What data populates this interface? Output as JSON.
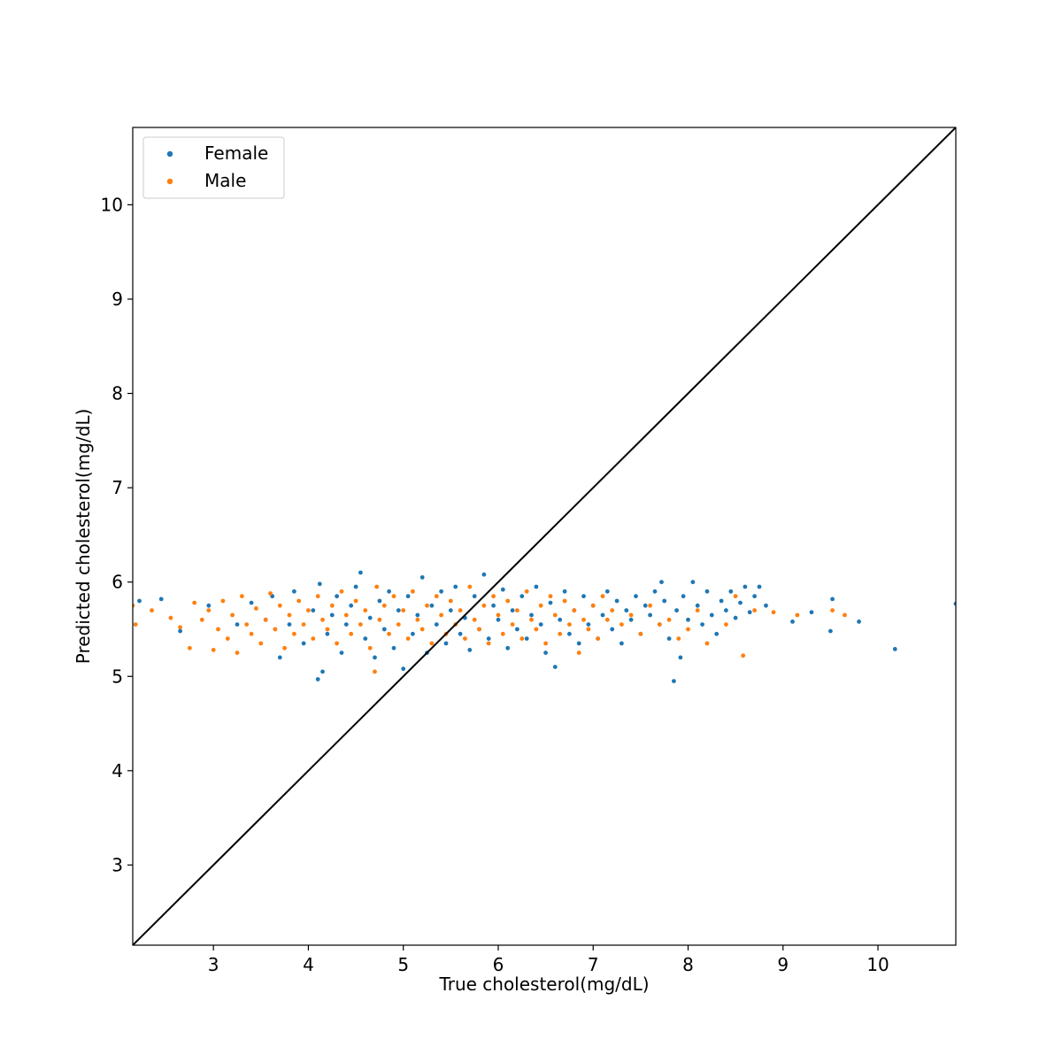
{
  "chart_data": {
    "type": "scatter",
    "xlabel": "True cholesterol(mg/dL)",
    "ylabel": "Predicted cholesterol(mg/dL)",
    "xlim": [
      2.15,
      10.82
    ],
    "ylim": [
      2.15,
      10.82
    ],
    "xticks": [
      3,
      4,
      5,
      6,
      7,
      8,
      9,
      10
    ],
    "yticks": [
      3,
      4,
      5,
      6,
      7,
      8,
      9,
      10
    ],
    "xtick_labels": [
      "3",
      "4",
      "5",
      "6",
      "7",
      "8",
      "9",
      "10"
    ],
    "ytick_labels": [
      "3",
      "4",
      "5",
      "6",
      "7",
      "8",
      "9",
      "10"
    ],
    "grid": false,
    "legend_position": "top-left",
    "reference_line": {
      "from": [
        2.15,
        2.15
      ],
      "to": [
        10.82,
        10.82
      ],
      "color": "#000000"
    },
    "series": [
      {
        "name": "Female",
        "color": "#1f77b4",
        "points": [
          [
            2.22,
            5.8
          ],
          [
            2.45,
            5.82
          ],
          [
            2.65,
            5.48
          ],
          [
            2.95,
            5.75
          ],
          [
            3.25,
            5.55
          ],
          [
            3.4,
            5.78
          ],
          [
            3.55,
            5.6
          ],
          [
            3.62,
            5.85
          ],
          [
            3.7,
            5.2
          ],
          [
            3.8,
            5.55
          ],
          [
            3.85,
            5.9
          ],
          [
            3.95,
            5.35
          ],
          [
            4.05,
            5.7
          ],
          [
            4.1,
            4.97
          ],
          [
            4.12,
            5.98
          ],
          [
            4.15,
            5.05
          ],
          [
            4.2,
            5.45
          ],
          [
            4.25,
            5.65
          ],
          [
            4.3,
            5.85
          ],
          [
            4.35,
            5.25
          ],
          [
            4.4,
            5.55
          ],
          [
            4.45,
            5.75
          ],
          [
            4.5,
            5.95
          ],
          [
            4.55,
            6.1
          ],
          [
            4.6,
            5.4
          ],
          [
            4.65,
            5.62
          ],
          [
            4.7,
            5.2
          ],
          [
            4.75,
            5.8
          ],
          [
            4.8,
            5.5
          ],
          [
            4.85,
            5.9
          ],
          [
            4.9,
            5.3
          ],
          [
            4.95,
            5.7
          ],
          [
            5.0,
            5.08
          ],
          [
            5.05,
            5.85
          ],
          [
            5.1,
            5.45
          ],
          [
            5.15,
            5.65
          ],
          [
            5.2,
            6.05
          ],
          [
            5.25,
            5.25
          ],
          [
            5.3,
            5.75
          ],
          [
            5.35,
            5.55
          ],
          [
            5.4,
            5.9
          ],
          [
            5.45,
            5.35
          ],
          [
            5.5,
            5.7
          ],
          [
            5.55,
            5.95
          ],
          [
            5.6,
            5.45
          ],
          [
            5.65,
            5.62
          ],
          [
            5.7,
            5.28
          ],
          [
            5.75,
            5.85
          ],
          [
            5.8,
            5.5
          ],
          [
            5.85,
            6.08
          ],
          [
            5.9,
            5.4
          ],
          [
            5.95,
            5.75
          ],
          [
            6.0,
            5.6
          ],
          [
            6.05,
            5.92
          ],
          [
            6.1,
            5.3
          ],
          [
            6.15,
            5.7
          ],
          [
            6.2,
            5.5
          ],
          [
            6.25,
            5.85
          ],
          [
            6.3,
            5.4
          ],
          [
            6.35,
            5.65
          ],
          [
            6.4,
            5.95
          ],
          [
            6.45,
            5.55
          ],
          [
            6.5,
            5.25
          ],
          [
            6.55,
            5.78
          ],
          [
            6.6,
            5.1
          ],
          [
            6.65,
            5.6
          ],
          [
            6.7,
            5.9
          ],
          [
            6.75,
            5.45
          ],
          [
            6.8,
            5.7
          ],
          [
            6.85,
            5.35
          ],
          [
            6.9,
            5.85
          ],
          [
            6.95,
            5.55
          ],
          [
            7.0,
            5.75
          ],
          [
            7.05,
            5.4
          ],
          [
            7.1,
            5.65
          ],
          [
            7.15,
            5.9
          ],
          [
            7.2,
            5.5
          ],
          [
            7.25,
            5.8
          ],
          [
            7.3,
            5.35
          ],
          [
            7.35,
            5.7
          ],
          [
            7.4,
            5.6
          ],
          [
            7.45,
            5.85
          ],
          [
            7.5,
            5.45
          ],
          [
            7.55,
            5.75
          ],
          [
            7.6,
            5.65
          ],
          [
            7.65,
            5.9
          ],
          [
            7.7,
            5.55
          ],
          [
            7.72,
            6.0
          ],
          [
            7.75,
            5.8
          ],
          [
            7.8,
            5.4
          ],
          [
            7.85,
            4.95
          ],
          [
            7.88,
            5.7
          ],
          [
            7.92,
            5.2
          ],
          [
            7.95,
            5.85
          ],
          [
            8.0,
            5.6
          ],
          [
            8.05,
            6.0
          ],
          [
            8.1,
            5.75
          ],
          [
            8.15,
            5.55
          ],
          [
            8.2,
            5.9
          ],
          [
            8.25,
            5.65
          ],
          [
            8.3,
            5.45
          ],
          [
            8.35,
            5.8
          ],
          [
            8.4,
            5.7
          ],
          [
            8.45,
            5.9
          ],
          [
            8.5,
            5.62
          ],
          [
            8.55,
            5.78
          ],
          [
            8.6,
            5.95
          ],
          [
            8.65,
            5.68
          ],
          [
            8.7,
            5.85
          ],
          [
            8.75,
            5.95
          ],
          [
            8.82,
            5.75
          ],
          [
            9.1,
            5.58
          ],
          [
            9.3,
            5.68
          ],
          [
            9.5,
            5.48
          ],
          [
            9.52,
            5.82
          ],
          [
            9.8,
            5.58
          ],
          [
            10.18,
            5.29
          ],
          [
            10.82,
            5.77
          ]
        ]
      },
      {
        "name": "Male",
        "color": "#ff7f0e",
        "points": [
          [
            2.15,
            5.75
          ],
          [
            2.18,
            5.55
          ],
          [
            2.35,
            5.7
          ],
          [
            2.55,
            5.62
          ],
          [
            2.65,
            5.52
          ],
          [
            2.75,
            5.3
          ],
          [
            2.8,
            5.78
          ],
          [
            2.88,
            5.6
          ],
          [
            2.95,
            5.7
          ],
          [
            3.0,
            5.28
          ],
          [
            3.05,
            5.5
          ],
          [
            3.1,
            5.8
          ],
          [
            3.15,
            5.4
          ],
          [
            3.2,
            5.65
          ],
          [
            3.25,
            5.25
          ],
          [
            3.3,
            5.85
          ],
          [
            3.35,
            5.55
          ],
          [
            3.4,
            5.45
          ],
          [
            3.45,
            5.72
          ],
          [
            3.5,
            5.35
          ],
          [
            3.55,
            5.6
          ],
          [
            3.6,
            5.88
          ],
          [
            3.65,
            5.5
          ],
          [
            3.7,
            5.75
          ],
          [
            3.75,
            5.3
          ],
          [
            3.8,
            5.65
          ],
          [
            3.85,
            5.45
          ],
          [
            3.9,
            5.8
          ],
          [
            3.95,
            5.55
          ],
          [
            4.0,
            5.7
          ],
          [
            4.05,
            5.4
          ],
          [
            4.1,
            5.85
          ],
          [
            4.15,
            5.6
          ],
          [
            4.2,
            5.5
          ],
          [
            4.25,
            5.75
          ],
          [
            4.3,
            5.35
          ],
          [
            4.35,
            5.9
          ],
          [
            4.4,
            5.65
          ],
          [
            4.45,
            5.45
          ],
          [
            4.5,
            5.8
          ],
          [
            4.55,
            5.55
          ],
          [
            4.6,
            5.7
          ],
          [
            4.65,
            5.3
          ],
          [
            4.7,
            5.05
          ],
          [
            4.72,
            5.95
          ],
          [
            4.75,
            5.6
          ],
          [
            4.8,
            5.75
          ],
          [
            4.85,
            5.45
          ],
          [
            4.9,
            5.85
          ],
          [
            4.95,
            5.55
          ],
          [
            5.0,
            5.7
          ],
          [
            5.05,
            5.4
          ],
          [
            5.1,
            5.9
          ],
          [
            5.15,
            5.6
          ],
          [
            5.2,
            5.5
          ],
          [
            5.25,
            5.75
          ],
          [
            5.3,
            5.35
          ],
          [
            5.35,
            5.85
          ],
          [
            5.4,
            5.65
          ],
          [
            5.45,
            5.45
          ],
          [
            5.5,
            5.8
          ],
          [
            5.55,
            5.55
          ],
          [
            5.6,
            5.7
          ],
          [
            5.65,
            5.4
          ],
          [
            5.7,
            5.95
          ],
          [
            5.75,
            5.6
          ],
          [
            5.8,
            5.5
          ],
          [
            5.85,
            5.75
          ],
          [
            5.9,
            5.35
          ],
          [
            5.95,
            5.85
          ],
          [
            6.0,
            5.65
          ],
          [
            6.05,
            5.45
          ],
          [
            6.1,
            5.8
          ],
          [
            6.15,
            5.55
          ],
          [
            6.2,
            5.7
          ],
          [
            6.25,
            5.4
          ],
          [
            6.3,
            5.9
          ],
          [
            6.35,
            5.6
          ],
          [
            6.4,
            5.5
          ],
          [
            6.45,
            5.75
          ],
          [
            6.5,
            5.35
          ],
          [
            6.55,
            5.85
          ],
          [
            6.6,
            5.65
          ],
          [
            6.65,
            5.45
          ],
          [
            6.7,
            5.8
          ],
          [
            6.75,
            5.55
          ],
          [
            6.8,
            5.7
          ],
          [
            6.85,
            5.25
          ],
          [
            6.9,
            5.6
          ],
          [
            6.95,
            5.5
          ],
          [
            7.0,
            5.75
          ],
          [
            7.05,
            5.4
          ],
          [
            7.1,
            5.85
          ],
          [
            7.15,
            5.6
          ],
          [
            7.2,
            5.7
          ],
          [
            7.3,
            5.55
          ],
          [
            7.4,
            5.65
          ],
          [
            7.5,
            5.45
          ],
          [
            7.6,
            5.75
          ],
          [
            7.7,
            5.55
          ],
          [
            7.8,
            5.6
          ],
          [
            7.9,
            5.4
          ],
          [
            8.0,
            5.5
          ],
          [
            8.1,
            5.7
          ],
          [
            8.2,
            5.35
          ],
          [
            8.4,
            5.55
          ],
          [
            8.5,
            5.85
          ],
          [
            8.58,
            5.22
          ],
          [
            8.7,
            5.7
          ],
          [
            8.9,
            5.68
          ],
          [
            9.15,
            5.65
          ],
          [
            9.52,
            5.7
          ],
          [
            9.65,
            5.65
          ]
        ]
      }
    ]
  }
}
